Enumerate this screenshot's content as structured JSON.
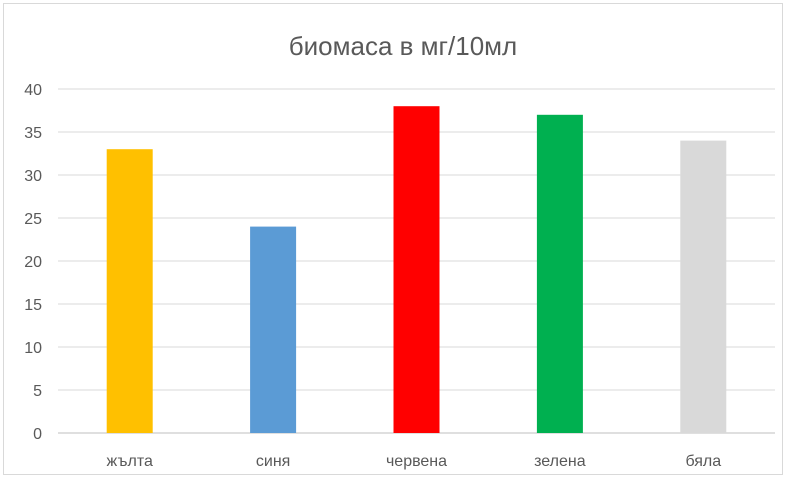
{
  "chart_data": {
    "type": "bar",
    "title": "биомаса в мг/10мл",
    "xlabel": "",
    "ylabel": "",
    "categories": [
      "жълта",
      "синя",
      "червена",
      "зелена",
      "бяла"
    ],
    "values": [
      33,
      24,
      38,
      37,
      34
    ],
    "colors": [
      "#ffc000",
      "#5b9bd5",
      "#ff0000",
      "#00b050",
      "#d9d9d9"
    ],
    "ylim": [
      0,
      40
    ],
    "yticks": [
      "0",
      "5",
      "10",
      "15",
      "20",
      "25",
      "30",
      "35",
      "40"
    ],
    "grid": true,
    "legend": "none"
  }
}
